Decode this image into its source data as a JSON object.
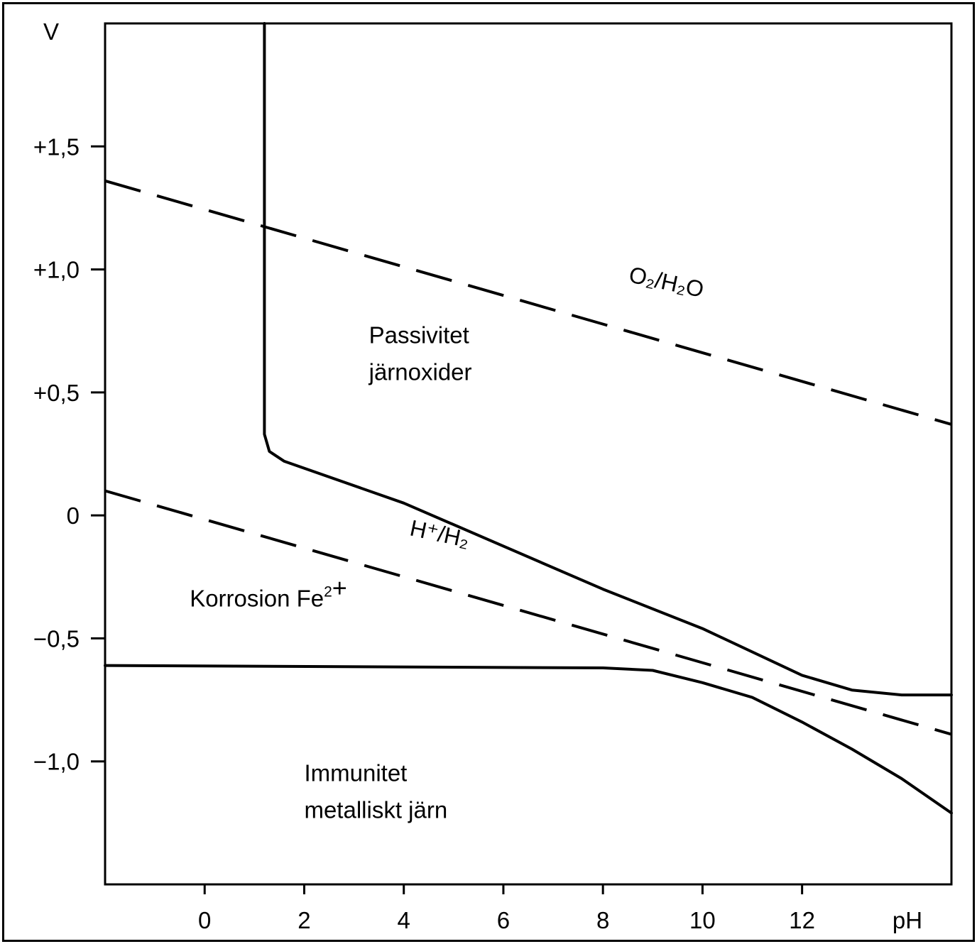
{
  "chart_data": {
    "type": "line",
    "ylabel": "V",
    "xlabel": "pH",
    "xlim": [
      -2,
      15
    ],
    "ylim": [
      -1.5,
      2.0
    ],
    "x_ticks": [
      {
        "value": 0,
        "label": "0"
      },
      {
        "value": 2,
        "label": "2"
      },
      {
        "value": 4,
        "label": "4"
      },
      {
        "value": 6,
        "label": "6"
      },
      {
        "value": 8,
        "label": "8"
      },
      {
        "value": 10,
        "label": "10"
      },
      {
        "value": 12,
        "label": "12"
      }
    ],
    "y_ticks": [
      {
        "value": 1.5,
        "label": "+1,5"
      },
      {
        "value": 1.0,
        "label": "+1,0"
      },
      {
        "value": 0.5,
        "label": "+0,5"
      },
      {
        "value": 0.0,
        "label": "0"
      },
      {
        "value": -0.5,
        "label": "−0,5"
      },
      {
        "value": -1.0,
        "label": "−1,0"
      }
    ],
    "grid": false,
    "series": [
      {
        "style": "solid",
        "points": [
          [
            1.2,
            2.0
          ],
          [
            1.2,
            0.33
          ],
          [
            1.3,
            0.26
          ],
          [
            1.6,
            0.22
          ],
          [
            4,
            0.05
          ],
          [
            8,
            -0.3
          ],
          [
            10,
            -0.46
          ],
          [
            12,
            -0.65
          ],
          [
            13,
            -0.71
          ],
          [
            14,
            -0.73
          ],
          [
            15,
            -0.73
          ]
        ]
      },
      {
        "style": "solid",
        "points": [
          [
            -2,
            -0.61
          ],
          [
            8,
            -0.62
          ],
          [
            9,
            -0.63
          ],
          [
            10,
            -0.68
          ],
          [
            11,
            -0.74
          ],
          [
            12,
            -0.84
          ],
          [
            13,
            -0.95
          ],
          [
            14,
            -1.07
          ],
          [
            15,
            -1.21
          ]
        ]
      },
      {
        "style": "dashed",
        "points": [
          [
            -2,
            1.36
          ],
          [
            15,
            0.37
          ]
        ]
      },
      {
        "style": "dashed",
        "points": [
          [
            -2,
            0.1
          ],
          [
            15,
            -0.89
          ]
        ]
      }
    ],
    "annotations": [
      {
        "lines": [
          "Passivitet",
          "järnoxider"
        ],
        "x": 3.3,
        "y": 0.7
      },
      {
        "lines": [
          "Immunitet",
          "metalliskt järn"
        ],
        "x": 2.0,
        "y": -1.08
      },
      {
        "lines": [
          "Korrosion Fe"
        ],
        "sup": "2",
        "suffix": "+",
        "x": -0.3,
        "y": -0.37
      },
      {
        "text": "O₂/H₂O",
        "x": 8.5,
        "y": 0.95,
        "rotate": 12
      },
      {
        "text": "H⁺/H₂",
        "x": 4.1,
        "y": -0.08,
        "rotate": 12
      }
    ]
  }
}
